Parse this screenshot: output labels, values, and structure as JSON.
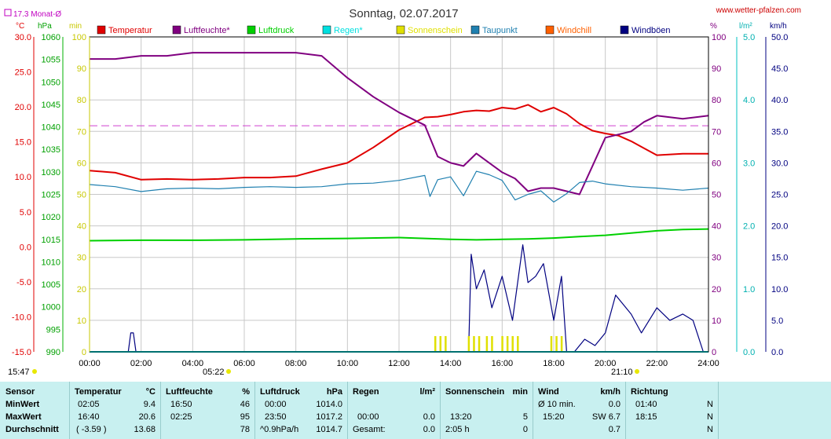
{
  "header": {
    "title": "Sonntag, 02.07.2017",
    "site": "www.wetter-pfalzen.com",
    "monat_label": "17.3 Monat-Ø"
  },
  "axes": {
    "left_units": [
      "°C",
      "hPa",
      "min"
    ],
    "right_units": [
      "%",
      "l/m²",
      "km/h"
    ],
    "temp_ticks": [
      "30.0",
      "25.0",
      "20.0",
      "15.0",
      "10.0",
      "5.0",
      "0.0",
      "-5.0",
      "-10.0",
      "-15.0"
    ],
    "hpa_ticks": [
      "1060",
      "1055",
      "1050",
      "1045",
      "1040",
      "1035",
      "1030",
      "1025",
      "1020",
      "1015",
      "1010",
      "1005",
      "1000",
      "995",
      "990"
    ],
    "min_ticks": [
      "100",
      "90",
      "80",
      "70",
      "60",
      "50",
      "40",
      "30",
      "20",
      "10",
      "0"
    ],
    "pct_ticks": [
      "100",
      "90",
      "80",
      "70",
      "60",
      "50",
      "40",
      "30",
      "20",
      "10",
      "0"
    ],
    "rain_ticks": [
      "5.0",
      "4.0",
      "3.0",
      "2.0",
      "1.0",
      "0.0"
    ],
    "kmh_ticks": [
      "50.0",
      "45.0",
      "40.0",
      "35.0",
      "30.0",
      "25.0",
      "20.0",
      "15.0",
      "10.0",
      "5.0",
      "0.0"
    ],
    "time_ticks": [
      "00:00",
      "02:00",
      "04:00",
      "06:00",
      "08:00",
      "10:00",
      "12:00",
      "14:00",
      "16:00",
      "18:00",
      "20:00",
      "22:00",
      "24:00"
    ],
    "sunrise": "05:22",
    "sunset": "21:10",
    "left_time": "15:47"
  },
  "legend": [
    {
      "label": "Temperatur",
      "color": "#e00000"
    },
    {
      "label": "Luftfeuchte*",
      "color": "#800080"
    },
    {
      "label": "Luftdruck",
      "color": "#00d000"
    },
    {
      "label": "Regen*",
      "color": "#00e0e0"
    },
    {
      "label": "Sonnenschein",
      "color": "#e0e000"
    },
    {
      "label": "Taupunkt",
      "color": "#2080b0"
    },
    {
      "label": "Windchill",
      "color": "#ff6000"
    },
    {
      "label": "Windböen",
      "color": "#000080"
    }
  ],
  "chart_data": {
    "type": "line",
    "x_unit": "hours",
    "x_range": [
      0,
      24
    ],
    "monthly_mean_temp": 17.3,
    "series": [
      {
        "name": "Temperatur",
        "axis": "°C",
        "x": [
          0,
          1,
          2,
          3,
          4,
          5,
          6,
          7,
          8,
          9,
          10,
          11,
          12,
          13,
          13.5,
          14,
          14.5,
          15,
          15.5,
          16,
          16.5,
          17,
          17.5,
          18,
          18.5,
          19,
          19.5,
          20,
          20.5,
          21,
          21.5,
          22,
          23,
          24
        ],
        "y": [
          10.9,
          10.6,
          9.6,
          9.7,
          9.6,
          9.7,
          9.9,
          9.9,
          10.1,
          11.1,
          12.0,
          14.2,
          16.7,
          18.5,
          18.6,
          18.9,
          19.3,
          19.5,
          19.4,
          19.9,
          19.7,
          20.3,
          19.3,
          19.9,
          19.0,
          17.6,
          16.6,
          16.2,
          15.9,
          15.1,
          14.1,
          13.1,
          13.3,
          13.3
        ]
      },
      {
        "name": "Luftfeuchte*",
        "axis": "%",
        "x": [
          0,
          1,
          2,
          3,
          4,
          5,
          6,
          7,
          8,
          9,
          10,
          11,
          12,
          13,
          13.5,
          14,
          14.5,
          15,
          15.5,
          16,
          16.5,
          17,
          17.5,
          18,
          18.5,
          19,
          19.5,
          20,
          20.5,
          21,
          21.5,
          22,
          23,
          24
        ],
        "y": [
          93,
          93,
          94,
          94,
          95,
          95,
          95,
          95,
          95,
          94,
          87,
          81,
          76,
          72,
          62,
          60,
          59,
          63,
          60,
          57,
          55,
          51,
          52,
          52,
          51,
          50,
          59,
          68,
          69,
          70,
          73,
          75,
          74,
          75
        ]
      },
      {
        "name": "Luftdruck",
        "axis": "hPa",
        "x": [
          0,
          2,
          4,
          6,
          8,
          10,
          12,
          13,
          14,
          15,
          16,
          17,
          18,
          19,
          20,
          21,
          22,
          23,
          24
        ],
        "y": [
          1014.7,
          1014.8,
          1014.8,
          1014.9,
          1015.1,
          1015.2,
          1015.4,
          1015.2,
          1015.0,
          1014.9,
          1015.0,
          1015.1,
          1015.3,
          1015.6,
          1015.9,
          1016.4,
          1016.9,
          1017.2,
          1017.3
        ]
      },
      {
        "name": "Taupunkt",
        "axis": "°C",
        "x": [
          0,
          1,
          2,
          3,
          4,
          5,
          6,
          7,
          8,
          9,
          10,
          11,
          12,
          13,
          13.2,
          13.5,
          14,
          14.5,
          15,
          15.5,
          16,
          16.5,
          17,
          17.5,
          18,
          18.5,
          19,
          19.5,
          20,
          21,
          22,
          23,
          24
        ],
        "y": [
          8.9,
          8.6,
          7.9,
          8.3,
          8.4,
          8.3,
          8.5,
          8.6,
          8.5,
          8.6,
          9.0,
          9.1,
          9.5,
          10.2,
          7.2,
          9.6,
          10.0,
          7.3,
          10.8,
          10.3,
          9.5,
          6.7,
          7.5,
          8.0,
          6.4,
          7.6,
          9.2,
          9.4,
          9.0,
          8.6,
          8.4,
          8.1,
          8.4
        ]
      },
      {
        "name": "Windböen",
        "axis": "km/h",
        "x": [
          0,
          1.5,
          1.6,
          1.7,
          1.8,
          2,
          14.7,
          14.8,
          15,
          15.3,
          15.6,
          16,
          16.4,
          16.8,
          17,
          17.3,
          17.6,
          18,
          18.3,
          18.5,
          18.8,
          19.2,
          19.6,
          20,
          20.4,
          21,
          21.4,
          22,
          22.5,
          23,
          23.4,
          23.8,
          24
        ],
        "y": [
          0,
          0,
          3,
          3,
          0,
          0,
          0,
          15.5,
          10,
          13,
          7,
          12,
          5,
          17,
          11,
          12,
          14,
          5,
          12,
          0,
          0,
          2,
          1,
          3,
          9,
          6,
          3,
          7,
          5,
          6,
          5,
          0,
          0
        ]
      },
      {
        "name": "Sonnenschein",
        "axis": "min",
        "x": [
          13.4,
          13.6,
          13.8,
          14.7,
          14.9,
          15.1,
          15.4,
          15.6,
          16.0,
          16.2,
          16.4,
          16.6,
          17.9,
          18.1,
          18.3
        ],
        "y": [
          5,
          5,
          5,
          5,
          5,
          5,
          5,
          5,
          5,
          5,
          5,
          5,
          5,
          5,
          5
        ]
      },
      {
        "name": "Regen*",
        "axis": "l/m²",
        "x": [
          0,
          24
        ],
        "y": [
          0,
          0
        ]
      }
    ]
  },
  "table": {
    "row_labels": [
      "Sensor",
      "MinWert",
      "MaxWert",
      "Durchschnitt"
    ],
    "temperatur": {
      "h1": "Temperatur",
      "h2": "°C",
      "min_t": "02:05",
      "min_v": "9.4",
      "max_t": "16:40",
      "max_v": "20.6",
      "avg_t": "( -3.59 )",
      "avg_v": "13.68"
    },
    "luftfeuchte": {
      "h1": "Luftfeuchte",
      "h2": "%",
      "min_t": "16:50",
      "min_v": "46",
      "max_t": "02:25",
      "max_v": "95",
      "avg_t": "",
      "avg_v": "78"
    },
    "luftdruck": {
      "h1": "Luftdruck",
      "h2": "hPa",
      "min_t": "00:00",
      "min_v": "1014.0",
      "max_t": "23:50",
      "max_v": "1017.2",
      "avg_t": "^0.9hPa/h",
      "avg_v": "1014.7"
    },
    "regen": {
      "h1": "Regen",
      "h2": "l/m²",
      "max_t": "00:00",
      "max_v": "0.0",
      "avg_t": "Gesamt:",
      "avg_v": "0.0"
    },
    "sonne": {
      "h1": "Sonnenschein",
      "h2": "min",
      "max_t": "13:20",
      "max_v": "5",
      "avg_t": "2:05 h",
      "avg_v": "0"
    },
    "wind": {
      "h1": "Wind",
      "h2": "km/h",
      "min_t": "Ø 10 min.",
      "min_v": "0.0",
      "max_t": "15:20",
      "max_v": "SW 6.7",
      "avg_v": "0.7"
    },
    "richtung": {
      "h1": "Richtung",
      "min_t": "01:40",
      "min_v": "N",
      "max_t": "18:15",
      "max_v": "N",
      "avg_v": "N"
    }
  }
}
